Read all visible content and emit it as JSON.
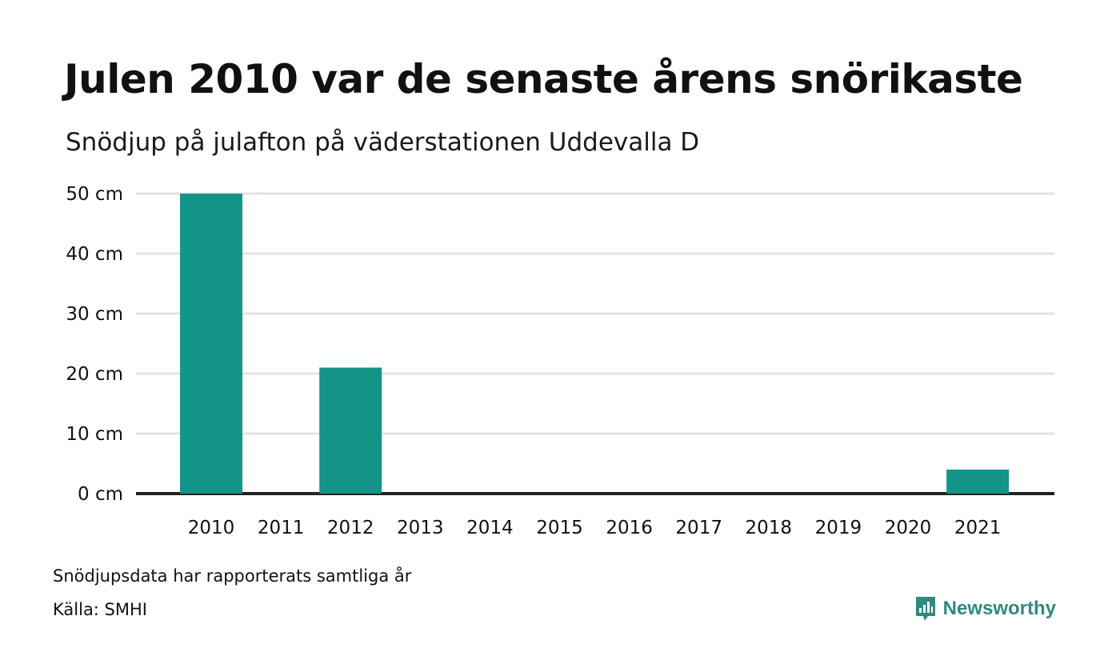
{
  "title": "Julen 2010 var de senaste årens snörikaste",
  "subtitle": "Snödjup på julafton på väderstationen Uddevalla D",
  "note": "Snödjupsdata har rapporterats samtliga år",
  "source": "Källa: SMHI",
  "logo": {
    "text": "Newsworthy",
    "icon": "bar-chart-bubble-icon",
    "color": "#2e8b7e"
  },
  "colors": {
    "bar": "#14958a",
    "grid": "#e2e2e2",
    "baseline": "#222222"
  },
  "chart_data": {
    "type": "bar",
    "categories": [
      "2010",
      "2011",
      "2012",
      "2013",
      "2014",
      "2015",
      "2016",
      "2017",
      "2018",
      "2019",
      "2020",
      "2021"
    ],
    "values": [
      50,
      0,
      21,
      0,
      0,
      0,
      0,
      0,
      0,
      0,
      0,
      4
    ],
    "yticks": [
      0,
      10,
      20,
      30,
      40,
      50
    ],
    "ytick_labels": [
      "0 cm",
      "10 cm",
      "20 cm",
      "30 cm",
      "40 cm",
      "50 cm"
    ],
    "ylim": [
      0,
      50
    ],
    "grid": true,
    "xlabel": "",
    "ylabel": ""
  }
}
